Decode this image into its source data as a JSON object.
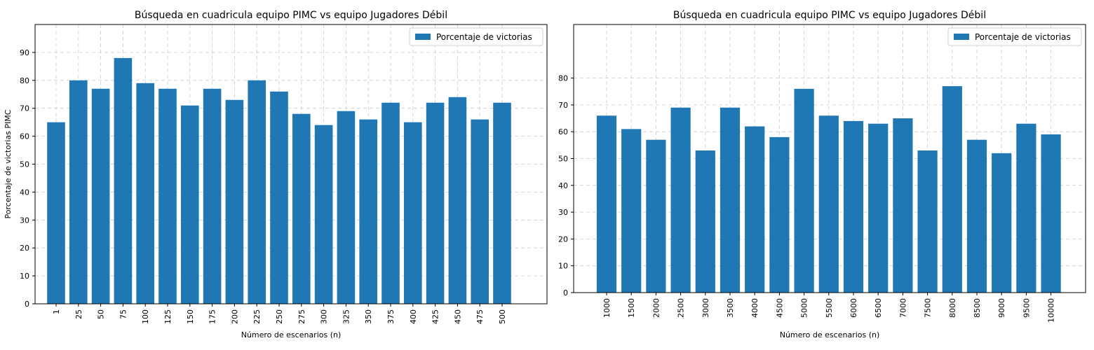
{
  "chart_data": [
    {
      "type": "bar",
      "title": "Búsqueda en cuadricula equipo PIMC vs equipo Jugadores Débil",
      "xlabel": "Número de escenarios (n)",
      "ylabel": "Porcentaje de victorias PIMC",
      "ylim": [
        0,
        100
      ],
      "yticks": [
        0,
        10,
        20,
        30,
        40,
        50,
        60,
        70,
        80,
        90
      ],
      "grid": true,
      "legend_position": "top-right",
      "categories": [
        "1",
        "25",
        "50",
        "75",
        "100",
        "125",
        "150",
        "175",
        "200",
        "225",
        "250",
        "275",
        "300",
        "325",
        "350",
        "375",
        "400",
        "425",
        "450",
        "475",
        "500"
      ],
      "series": [
        {
          "name": "Porcentaje de victorias",
          "color": "#1f77b4",
          "values": [
            65,
            80,
            77,
            88,
            79,
            77,
            71,
            77,
            73,
            80,
            76,
            68,
            64,
            69,
            66,
            72,
            65,
            72,
            74,
            66,
            72
          ]
        }
      ]
    },
    {
      "type": "bar",
      "title": "Búsqueda en cuadricula equipo PIMC vs equipo Jugadores Débil",
      "xlabel": "Número de escenarios (n)",
      "ylabel": "",
      "ylim": [
        0,
        100
      ],
      "yticks": [
        0,
        10,
        20,
        30,
        40,
        50,
        60,
        70,
        80
      ],
      "grid": true,
      "legend_position": "top-right",
      "categories": [
        "1000",
        "1500",
        "2000",
        "2500",
        "3000",
        "3500",
        "4000",
        "4500",
        "5000",
        "5500",
        "6000",
        "6500",
        "7000",
        "7500",
        "8000",
        "8500",
        "9000",
        "9500",
        "10000"
      ],
      "series": [
        {
          "name": "Porcentaje de victorias",
          "color": "#1f77b4",
          "values": [
            66,
            61,
            57,
            69,
            53,
            69,
            62,
            58,
            76,
            66,
            64,
            63,
            65,
            53,
            77,
            57,
            52,
            63,
            59
          ]
        }
      ]
    }
  ]
}
